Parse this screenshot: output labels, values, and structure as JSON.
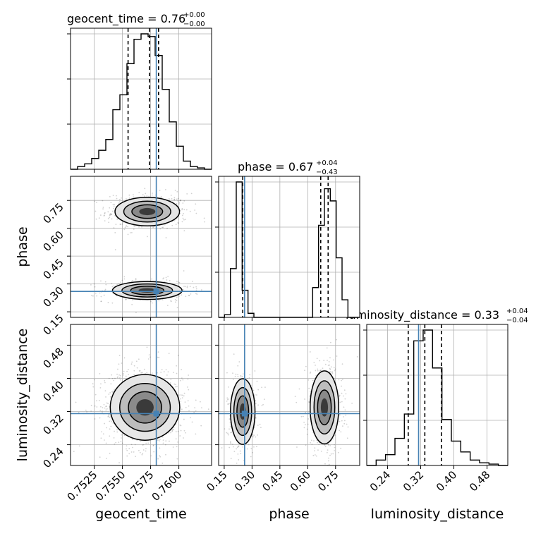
{
  "chart_data": {
    "type": "corner",
    "grid": true,
    "colors": {
      "truth": "#4682b4",
      "hist": "#000000",
      "quantile": "#000000",
      "samples": "#000000"
    },
    "parameters": [
      {
        "name": "geocent_time",
        "axis_label": "geocent_time",
        "title_text": "geocent_time = 0.76",
        "title_sup": "+0.00",
        "title_sub": "−0.00",
        "range": [
          0.7504,
          0.7629
        ],
        "ticks": [
          {
            "value": 0.7525,
            "label": "0.7525"
          },
          {
            "value": 0.755,
            "label": "0.7550"
          },
          {
            "value": 0.7575,
            "label": "0.7575"
          },
          {
            "value": 0.76,
            "label": "0.7600"
          }
        ],
        "truth": 0.758,
        "quantiles": [
          0.7555,
          0.7574,
          0.7582
        ],
        "hist": {
          "range": [
            0.7504,
            0.7629
          ],
          "counts": [
            0,
            2,
            4,
            8,
            14,
            22,
            44,
            55,
            78,
            96,
            100,
            98,
            84,
            59,
            35,
            17,
            6,
            2,
            1,
            0
          ]
        }
      },
      {
        "name": "phase",
        "axis_label": "phase",
        "title_text": "phase = 0.67",
        "title_sup": "+0.04",
        "title_sub": "−0.43",
        "range": [
          0.12,
          0.88
        ],
        "ticks": [
          {
            "value": 0.15,
            "label": "0.15"
          },
          {
            "value": 0.3,
            "label": "0.30"
          },
          {
            "value": 0.45,
            "label": "0.45"
          },
          {
            "value": 0.6,
            "label": "0.60"
          },
          {
            "value": 0.75,
            "label": "0.75"
          }
        ],
        "truth": 0.26,
        "quantiles": [
          0.25,
          0.67,
          0.71
        ],
        "hist": {
          "range": [
            0.12,
            0.88
          ],
          "counts": [
            0,
            2,
            36,
            100,
            20,
            3,
            0,
            0,
            0,
            0,
            0,
            0,
            0,
            0,
            0,
            0,
            22,
            68,
            95,
            86,
            44,
            13,
            0,
            0
          ]
        }
      },
      {
        "name": "luminosity_distance",
        "axis_label": "luminosity_distance",
        "title_text": "luminosity_distance = 0.33",
        "title_sup": "+0.04",
        "title_sub": "−0.04",
        "range": [
          0.19,
          0.53
        ],
        "ticks": [
          {
            "value": 0.24,
            "label": "0.24"
          },
          {
            "value": 0.32,
            "label": "0.32"
          },
          {
            "value": 0.4,
            "label": "0.40"
          },
          {
            "value": 0.48,
            "label": "0.48"
          }
        ],
        "truth": 0.315,
        "quantiles": [
          0.29,
          0.33,
          0.37
        ],
        "hist": {
          "range": [
            0.19,
            0.53
          ],
          "counts": [
            0,
            4,
            8,
            20,
            38,
            92,
            100,
            72,
            34,
            18,
            10,
            4,
            2,
            1,
            0
          ]
        }
      }
    ],
    "pairs": [
      {
        "x": "geocent_time",
        "y": "phase",
        "truth_point": [
          0.758,
          0.26
        ],
        "modes": [
          {
            "cx": 0.7572,
            "cy": 0.69,
            "sx": 0.0013,
            "sy": 0.035,
            "w": 0.6
          },
          {
            "cx": 0.7572,
            "cy": 0.265,
            "sx": 0.0014,
            "sy": 0.022,
            "w": 0.4
          }
        ]
      },
      {
        "x": "geocent_time",
        "y": "luminosity_distance",
        "truth_point": [
          0.758,
          0.315
        ],
        "modes": [
          {
            "cx": 0.757,
            "cy": 0.33,
            "sx": 0.0014,
            "sy": 0.036,
            "w": 1.0
          }
        ]
      },
      {
        "x": "phase",
        "y": "luminosity_distance",
        "truth_point": [
          0.26,
          0.315
        ],
        "modes": [
          {
            "cx": 0.25,
            "cy": 0.32,
            "sx": 0.03,
            "sy": 0.036,
            "w": 0.4
          },
          {
            "cx": 0.69,
            "cy": 0.33,
            "sx": 0.035,
            "sy": 0.04,
            "w": 0.6
          }
        ]
      }
    ]
  }
}
